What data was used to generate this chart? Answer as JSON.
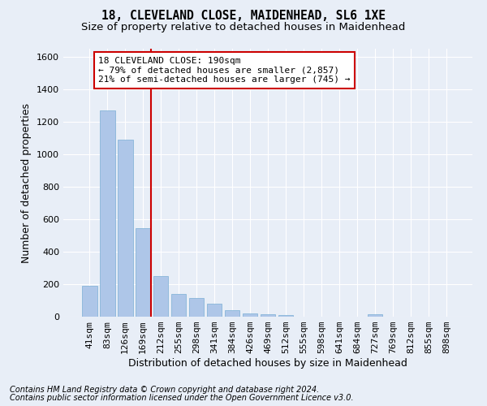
{
  "title_line1": "18, CLEVELAND CLOSE, MAIDENHEAD, SL6 1XE",
  "title_line2": "Size of property relative to detached houses in Maidenhead",
  "xlabel": "Distribution of detached houses by size in Maidenhead",
  "ylabel": "Number of detached properties",
  "footnote_line1": "Contains HM Land Registry data © Crown copyright and database right 2024.",
  "footnote_line2": "Contains public sector information licensed under the Open Government Licence v3.0.",
  "categories": [
    "41sqm",
    "83sqm",
    "126sqm",
    "169sqm",
    "212sqm",
    "255sqm",
    "298sqm",
    "341sqm",
    "384sqm",
    "426sqm",
    "469sqm",
    "512sqm",
    "555sqm",
    "598sqm",
    "641sqm",
    "684sqm",
    "727sqm",
    "769sqm",
    "812sqm",
    "855sqm",
    "898sqm"
  ],
  "values": [
    192,
    1268,
    1092,
    544,
    252,
    141,
    113,
    78,
    42,
    20,
    14,
    8,
    0,
    0,
    0,
    0,
    14,
    0,
    0,
    0,
    0
  ],
  "bar_color": "#aec6e8",
  "bar_edge_color": "#7aaed4",
  "highlight_bar_index": 3,
  "highlight_line_color": "#cc0000",
  "annotation_text_line1": "18 CLEVELAND CLOSE: 190sqm",
  "annotation_text_line2": "← 79% of detached houses are smaller (2,857)",
  "annotation_text_line3": "21% of semi-detached houses are larger (745) →",
  "annotation_box_color": "#ffffff",
  "annotation_box_edge_color": "#cc0000",
  "ylim": [
    0,
    1650
  ],
  "yticks": [
    0,
    200,
    400,
    600,
    800,
    1000,
    1200,
    1400,
    1600
  ],
  "background_color": "#e8eef7",
  "plot_background_color": "#e8eef7",
  "grid_color": "#ffffff",
  "title_fontsize": 10.5,
  "subtitle_fontsize": 9.5,
  "axis_label_fontsize": 9,
  "tick_fontsize": 8,
  "annotation_fontsize": 8,
  "footnote_fontsize": 7
}
